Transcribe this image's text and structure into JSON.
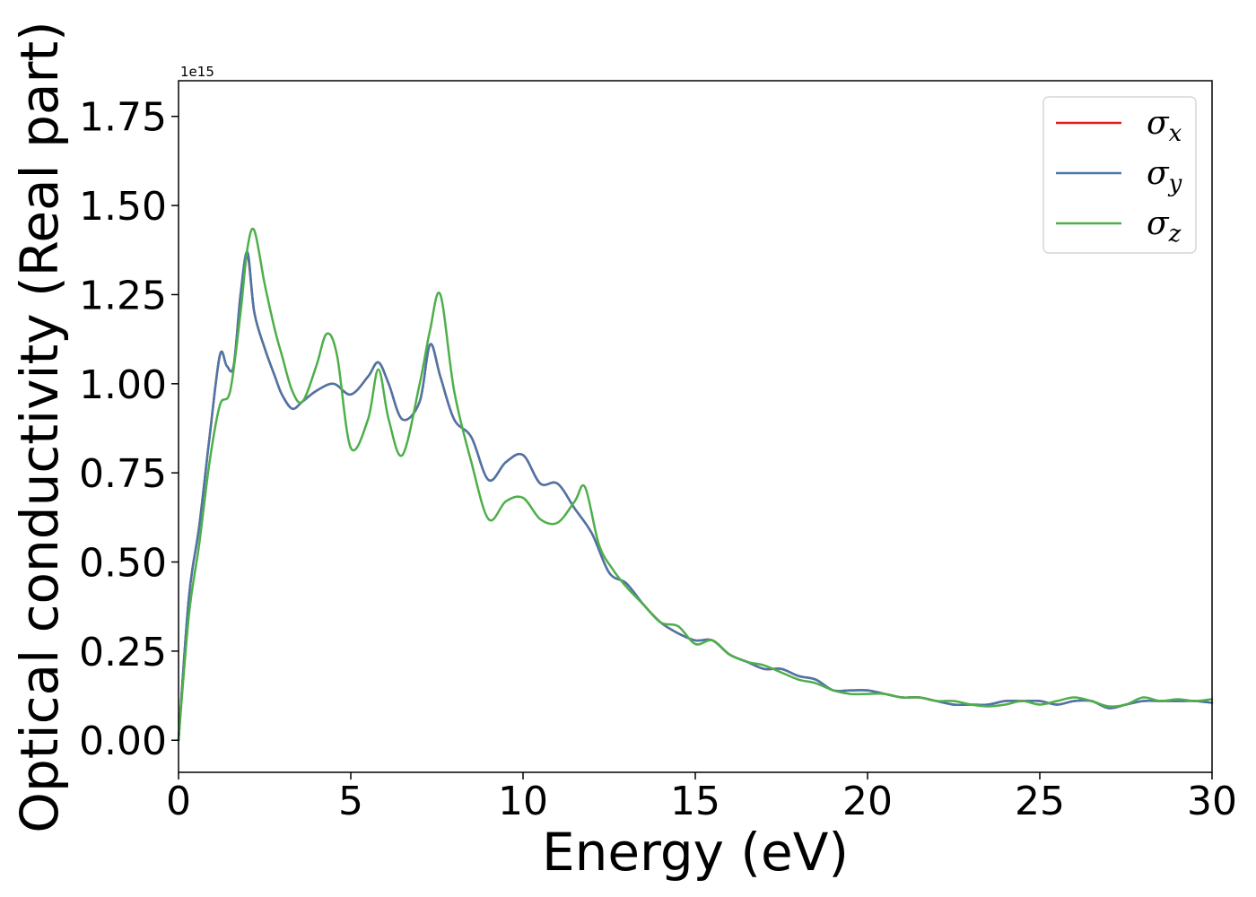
{
  "chart_data": {
    "type": "line",
    "xlabel": "Energy (eV)",
    "ylabel": "Optical conductivity (Real part)",
    "y_offset_label": "1e15",
    "xlim": [
      0,
      30
    ],
    "ylim": [
      -0.09,
      1.85
    ],
    "x_ticks": [
      0,
      5,
      10,
      15,
      20,
      25,
      30
    ],
    "x_tick_labels": [
      "0",
      "5",
      "10",
      "15",
      "20",
      "25",
      "30"
    ],
    "y_ticks": [
      0.0,
      0.25,
      0.5,
      0.75,
      1.0,
      1.25,
      1.5,
      1.75
    ],
    "y_tick_labels": [
      "0.00",
      "0.25",
      "0.50",
      "0.75",
      "1.00",
      "1.25",
      "1.50",
      "1.75"
    ],
    "grid": false,
    "legend_position": "top-right",
    "series": [
      {
        "name": "σx",
        "legend_base": "σ",
        "legend_sub": "x",
        "color": "#e41a1c",
        "x": [
          0,
          0.3,
          0.6,
          0.9,
          1.2,
          1.4,
          1.6,
          1.8,
          2.0,
          2.2,
          2.5,
          2.8,
          3.0,
          3.3,
          3.6,
          4.0,
          4.5,
          5.0,
          5.5,
          5.8,
          6.1,
          6.5,
          7.0,
          7.3,
          7.6,
          8.0,
          8.5,
          9.0,
          9.5,
          10.0,
          10.5,
          11.0,
          11.5,
          12.0,
          12.5,
          13.0,
          13.5,
          14.0,
          14.5,
          15.0,
          15.5,
          16.0,
          16.5,
          17.0,
          17.5,
          18.0,
          18.5,
          19.0,
          19.5,
          20.0,
          20.5,
          21.0,
          21.5,
          22.0,
          22.5,
          23.0,
          23.5,
          24.0,
          24.5,
          25.0,
          25.5,
          26.0,
          26.5,
          27.0,
          27.5,
          28.0,
          28.5,
          29.0,
          29.5,
          30.0
        ],
        "y": [
          0.0,
          0.4,
          0.6,
          0.85,
          1.08,
          1.05,
          1.05,
          1.25,
          1.36,
          1.2,
          1.1,
          1.02,
          0.97,
          0.93,
          0.95,
          0.98,
          1.0,
          0.97,
          1.02,
          1.06,
          1.0,
          0.9,
          0.95,
          1.11,
          1.02,
          0.9,
          0.85,
          0.73,
          0.78,
          0.8,
          0.72,
          0.72,
          0.65,
          0.58,
          0.47,
          0.44,
          0.38,
          0.33,
          0.3,
          0.28,
          0.28,
          0.24,
          0.22,
          0.2,
          0.2,
          0.18,
          0.17,
          0.14,
          0.14,
          0.14,
          0.13,
          0.12,
          0.12,
          0.11,
          0.1,
          0.1,
          0.1,
          0.11,
          0.11,
          0.11,
          0.1,
          0.11,
          0.11,
          0.09,
          0.1,
          0.11,
          0.11,
          0.11,
          0.11,
          0.105
        ]
      },
      {
        "name": "σy",
        "legend_base": "σ",
        "legend_sub": "y",
        "color": "#4a76a8",
        "x": [
          0,
          0.3,
          0.6,
          0.9,
          1.2,
          1.4,
          1.6,
          1.8,
          2.0,
          2.2,
          2.5,
          2.8,
          3.0,
          3.3,
          3.6,
          4.0,
          4.5,
          5.0,
          5.5,
          5.8,
          6.1,
          6.5,
          7.0,
          7.3,
          7.6,
          8.0,
          8.5,
          9.0,
          9.5,
          10.0,
          10.5,
          11.0,
          11.5,
          12.0,
          12.5,
          13.0,
          13.5,
          14.0,
          14.5,
          15.0,
          15.5,
          16.0,
          16.5,
          17.0,
          17.5,
          18.0,
          18.5,
          19.0,
          19.5,
          20.0,
          20.5,
          21.0,
          21.5,
          22.0,
          22.5,
          23.0,
          23.5,
          24.0,
          24.5,
          25.0,
          25.5,
          26.0,
          26.5,
          27.0,
          27.5,
          28.0,
          28.5,
          29.0,
          29.5,
          30.0
        ],
        "y": [
          0.0,
          0.4,
          0.6,
          0.85,
          1.08,
          1.05,
          1.05,
          1.25,
          1.37,
          1.2,
          1.1,
          1.02,
          0.97,
          0.93,
          0.95,
          0.98,
          1.0,
          0.97,
          1.02,
          1.06,
          1.0,
          0.9,
          0.95,
          1.11,
          1.02,
          0.9,
          0.85,
          0.73,
          0.78,
          0.8,
          0.72,
          0.72,
          0.65,
          0.58,
          0.47,
          0.44,
          0.38,
          0.33,
          0.3,
          0.28,
          0.28,
          0.24,
          0.22,
          0.2,
          0.2,
          0.18,
          0.17,
          0.14,
          0.14,
          0.14,
          0.13,
          0.12,
          0.12,
          0.11,
          0.1,
          0.1,
          0.1,
          0.11,
          0.11,
          0.11,
          0.1,
          0.11,
          0.11,
          0.09,
          0.1,
          0.11,
          0.11,
          0.11,
          0.11,
          0.105
        ]
      },
      {
        "name": "σz",
        "legend_base": "σ",
        "legend_sub": "z",
        "color": "#4daf4a",
        "x": [
          0,
          0.3,
          0.6,
          0.9,
          1.2,
          1.5,
          1.8,
          2.0,
          2.2,
          2.5,
          2.8,
          3.0,
          3.3,
          3.6,
          4.0,
          4.3,
          4.6,
          5.0,
          5.5,
          5.8,
          6.1,
          6.5,
          7.0,
          7.3,
          7.6,
          8.0,
          8.5,
          9.0,
          9.5,
          10.0,
          10.5,
          11.0,
          11.5,
          11.8,
          12.2,
          12.6,
          13.0,
          13.5,
          14.0,
          14.5,
          15.0,
          15.5,
          16.0,
          16.5,
          17.0,
          17.5,
          18.0,
          18.5,
          19.0,
          19.5,
          20.0,
          20.5,
          21.0,
          21.5,
          22.0,
          22.5,
          23.0,
          23.5,
          24.0,
          24.5,
          25.0,
          25.5,
          26.0,
          26.5,
          27.0,
          27.5,
          28.0,
          28.5,
          29.0,
          29.5,
          30.0
        ],
        "y": [
          0.0,
          0.35,
          0.55,
          0.78,
          0.94,
          0.98,
          1.2,
          1.38,
          1.43,
          1.28,
          1.15,
          1.08,
          0.98,
          0.95,
          1.05,
          1.14,
          1.08,
          0.82,
          0.9,
          1.04,
          0.9,
          0.8,
          1.0,
          1.15,
          1.25,
          0.98,
          0.78,
          0.62,
          0.67,
          0.68,
          0.62,
          0.61,
          0.67,
          0.71,
          0.55,
          0.48,
          0.43,
          0.38,
          0.33,
          0.32,
          0.27,
          0.28,
          0.24,
          0.22,
          0.21,
          0.19,
          0.17,
          0.16,
          0.14,
          0.13,
          0.13,
          0.13,
          0.12,
          0.12,
          0.11,
          0.11,
          0.1,
          0.095,
          0.1,
          0.11,
          0.1,
          0.11,
          0.12,
          0.11,
          0.095,
          0.1,
          0.12,
          0.11,
          0.115,
          0.11,
          0.115
        ]
      }
    ]
  }
}
